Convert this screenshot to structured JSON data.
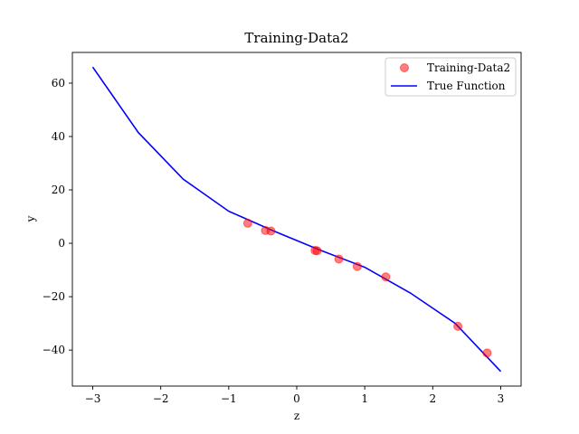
{
  "chart_data": {
    "type": "scatter",
    "title": "Training-Data2",
    "xlabel": "z",
    "ylabel": "y",
    "xlim": [
      -3.3,
      3.3
    ],
    "ylim": [
      -53.5,
      71.5
    ],
    "xticks": [
      -3,
      -2,
      -1,
      0,
      1,
      2,
      3
    ],
    "yticks": [
      -40,
      -20,
      0,
      20,
      40,
      60
    ],
    "xtick_labels": [
      "−3",
      "−2",
      "−1",
      "0",
      "1",
      "2",
      "3"
    ],
    "ytick_labels": [
      "−40",
      "−20",
      "0",
      "20",
      "40",
      "60"
    ],
    "grid": false,
    "legend_position": "top-right",
    "series": [
      {
        "name": "Training-Data2",
        "kind": "scatter",
        "color": "#ff0000",
        "x": [
          -0.72,
          -0.46,
          -0.38,
          0.27,
          0.3,
          0.62,
          0.89,
          1.31,
          2.37,
          2.8
        ],
        "y": [
          7.5,
          4.8,
          4.6,
          -2.7,
          -2.8,
          -5.9,
          -8.7,
          -12.6,
          -31.1,
          -41.1
        ]
      },
      {
        "name": "True Function",
        "kind": "line",
        "color": "#0000ff",
        "x": [
          -3.0,
          -2.33,
          -1.67,
          -1.0,
          -0.33,
          0.33,
          1.0,
          1.67,
          2.33,
          3.0
        ],
        "y": [
          66.0,
          41.5,
          24.0,
          12.0,
          4.5,
          -2.4,
          -9.0,
          -18.6,
          -30.0,
          -48.0
        ]
      }
    ]
  }
}
